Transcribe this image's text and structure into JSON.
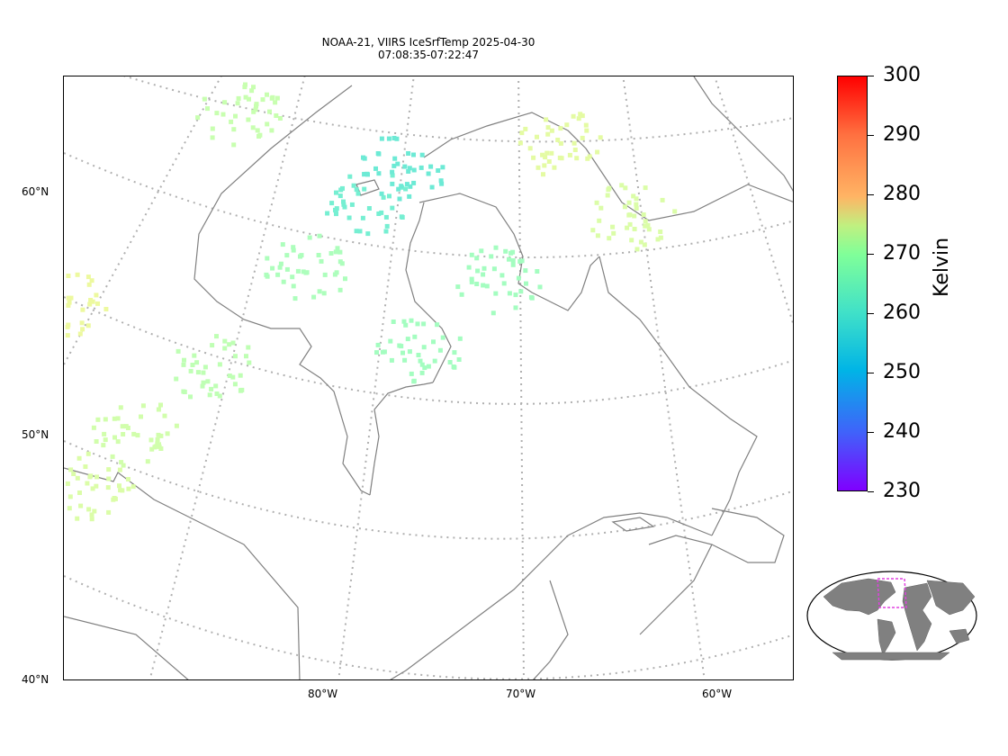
{
  "title_line1": "NOAA-21, VIIRS IceSrfTemp 2025-04-30",
  "title_line2": "07:08:35-07:22:47",
  "lat_labels": [
    "60°N",
    "50°N",
    "40°N"
  ],
  "lon_labels": [
    "80°W",
    "70°W",
    "60°W"
  ],
  "colorbar": {
    "label": "Kelvin",
    "ticks": [
      "300",
      "290",
      "280",
      "270",
      "260",
      "250",
      "240",
      "230"
    ],
    "min": 230,
    "max": 300,
    "colormap": "rainbow"
  },
  "colors": {
    "coastline": "#808080",
    "gridline": "#b0b0b0",
    "inset_box": "#e040e0",
    "land_inset": "#808080"
  },
  "chart_data": {
    "type": "scatter",
    "title": "NOAA-21, VIIRS IceSrfTemp 2025-04-30 07:08:35-07:22:47",
    "xlabel": "",
    "ylabel": "",
    "value_label": "Kelvin",
    "value_range": [
      230,
      300
    ],
    "lat_range": [
      40,
      62
    ],
    "lon_range": [
      -90,
      -55
    ],
    "regions": [
      {
        "name_hint": "",
        "lon": -77.7,
        "lat": 58.0,
        "kelvin": 257
      },
      {
        "name_hint": "",
        "lon": -76.0,
        "lat": 59.3,
        "kelvin": 256
      },
      {
        "name_hint": "",
        "lon": -80.0,
        "lat": 55.6,
        "kelvin": 263
      },
      {
        "name_hint": "",
        "lon": -84.0,
        "lat": 52.0,
        "kelvin": 265
      },
      {
        "name_hint": "",
        "lon": -87.5,
        "lat": 49.8,
        "kelvin": 267
      },
      {
        "name_hint": "",
        "lon": -89.5,
        "lat": 48.0,
        "kelvin": 268
      },
      {
        "name_hint": "",
        "lon": -68.5,
        "lat": 60.1,
        "kelvin": 269
      },
      {
        "name_hint": "",
        "lon": -64.5,
        "lat": 57.5,
        "kelvin": 268
      },
      {
        "name_hint": "",
        "lon": -70.5,
        "lat": 55.0,
        "kelvin": 262
      },
      {
        "name_hint": "",
        "lon": -74.0,
        "lat": 52.5,
        "kelvin": 262
      },
      {
        "name_hint": "",
        "lon": -92.0,
        "lat": 55.0,
        "kelvin": 270
      },
      {
        "name_hint": "",
        "lon": -84.5,
        "lat": 61.5,
        "kelvin": 266
      }
    ]
  }
}
